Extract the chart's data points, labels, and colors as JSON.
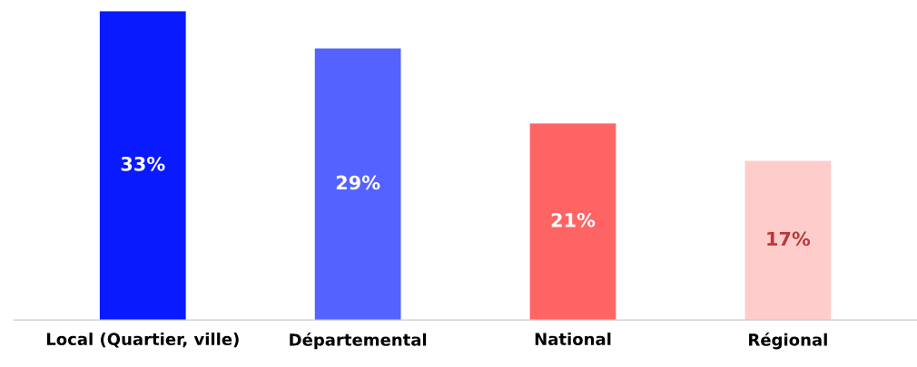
{
  "chart_data": {
    "type": "bar",
    "categories": [
      "Local (Quartier, ville)",
      "Départemental",
      "National",
      "Régional"
    ],
    "values": [
      33,
      29,
      21,
      17
    ],
    "colors": [
      "#0a1aff",
      "#5462ff",
      "#ff6464",
      "#ffcccc"
    ],
    "value_labels": [
      "33%",
      "29%",
      "21%",
      "17%"
    ],
    "ylim": [
      0,
      33
    ],
    "tick_labels": "x",
    "grid": false,
    "legend": false
  }
}
